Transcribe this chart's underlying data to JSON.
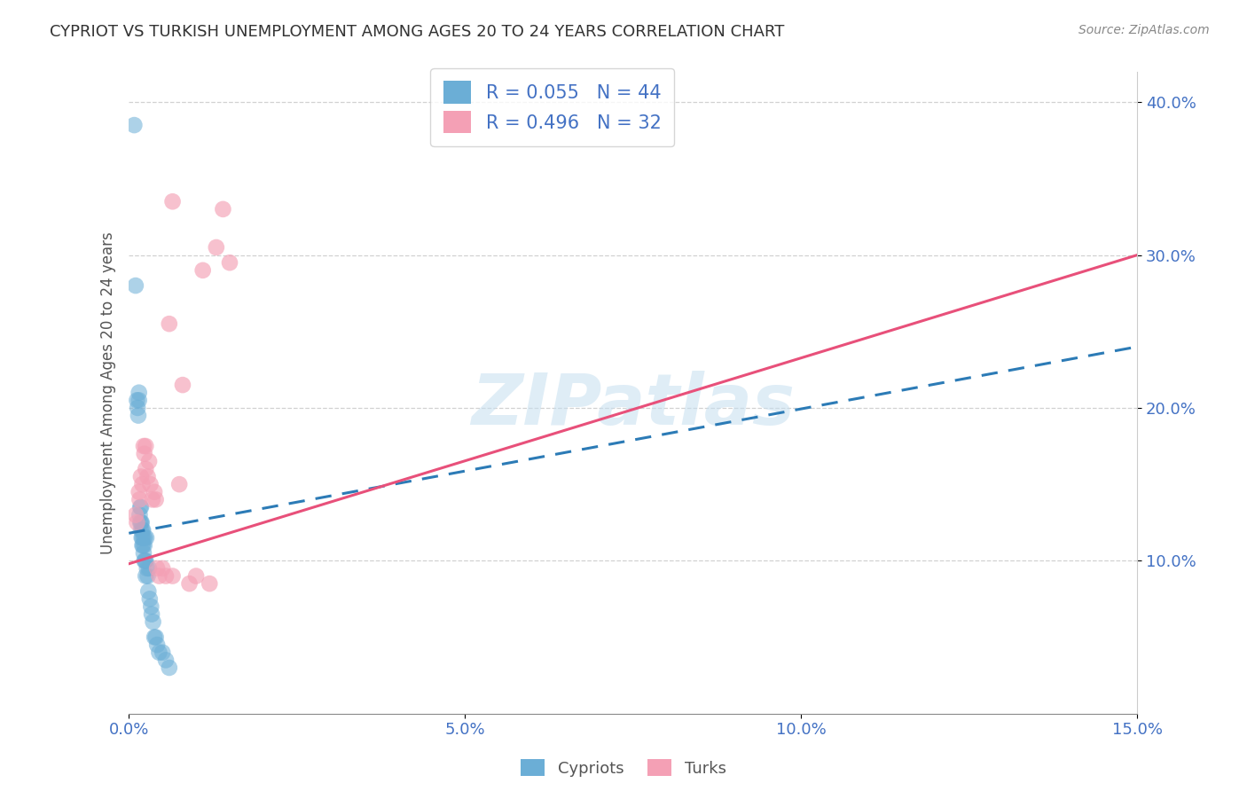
{
  "title": "CYPRIOT VS TURKISH UNEMPLOYMENT AMONG AGES 20 TO 24 YEARS CORRELATION CHART",
  "source": "Source: ZipAtlas.com",
  "ylabel": "Unemployment Among Ages 20 to 24 years",
  "xlim": [
    0.0,
    0.15
  ],
  "ylim": [
    0.0,
    0.42
  ],
  "xticks": [
    0.0,
    0.05,
    0.1,
    0.15
  ],
  "xticklabels": [
    "0.0%",
    "5.0%",
    "10.0%",
    "15.0%"
  ],
  "yticks": [
    0.1,
    0.2,
    0.3,
    0.4
  ],
  "yticklabels": [
    "10.0%",
    "20.0%",
    "30.0%",
    "40.0%"
  ],
  "R_cypriot": 0.055,
  "N_cypriot": 44,
  "R_turk": 0.496,
  "N_turk": 32,
  "cypriot_color": "#6baed6",
  "turk_color": "#f4a0b5",
  "cypriot_line_color": "#2c7bb6",
  "turk_line_color": "#e8507a",
  "watermark_color": "#c5dff0",
  "background_color": "#ffffff",
  "grid_color": "#cccccc",
  "cypriot_x": [
    0.0008,
    0.001,
    0.0012,
    0.0013,
    0.0014,
    0.0015,
    0.0015,
    0.0016,
    0.0017,
    0.0017,
    0.0018,
    0.0018,
    0.0018,
    0.0019,
    0.0019,
    0.002,
    0.002,
    0.002,
    0.0021,
    0.0021,
    0.0022,
    0.0022,
    0.0023,
    0.0023,
    0.0024,
    0.0024,
    0.0025,
    0.0025,
    0.0026,
    0.0027,
    0.0028,
    0.0029,
    0.003,
    0.0031,
    0.0033,
    0.0034,
    0.0036,
    0.0038,
    0.004,
    0.0042,
    0.0045,
    0.005,
    0.0055,
    0.006
  ],
  "cypriot_y": [
    0.385,
    0.28,
    0.205,
    0.2,
    0.195,
    0.21,
    0.205,
    0.13,
    0.135,
    0.125,
    0.135,
    0.125,
    0.12,
    0.125,
    0.115,
    0.12,
    0.115,
    0.11,
    0.12,
    0.11,
    0.115,
    0.105,
    0.11,
    0.1,
    0.115,
    0.1,
    0.1,
    0.09,
    0.115,
    0.095,
    0.09,
    0.08,
    0.095,
    0.075,
    0.07,
    0.065,
    0.06,
    0.05,
    0.05,
    0.045,
    0.04,
    0.04,
    0.035,
    0.03
  ],
  "turk_x": [
    0.001,
    0.0012,
    0.0015,
    0.0016,
    0.0018,
    0.002,
    0.0022,
    0.0023,
    0.0025,
    0.0025,
    0.0028,
    0.003,
    0.0032,
    0.0035,
    0.0038,
    0.004,
    0.0042,
    0.0045,
    0.005,
    0.0055,
    0.006,
    0.0065,
    0.0075,
    0.008,
    0.009,
    0.01,
    0.011,
    0.012,
    0.013,
    0.014,
    0.015,
    0.0065
  ],
  "turk_y": [
    0.13,
    0.125,
    0.145,
    0.14,
    0.155,
    0.15,
    0.175,
    0.17,
    0.175,
    0.16,
    0.155,
    0.165,
    0.15,
    0.14,
    0.145,
    0.14,
    0.095,
    0.09,
    0.095,
    0.09,
    0.255,
    0.09,
    0.15,
    0.215,
    0.085,
    0.09,
    0.29,
    0.085,
    0.305,
    0.33,
    0.295,
    0.335
  ],
  "cypriot_trendline_x": [
    0.0,
    0.15
  ],
  "cypriot_trendline_y": [
    0.118,
    0.24
  ],
  "turk_trendline_x": [
    0.0,
    0.15
  ],
  "turk_trendline_y": [
    0.098,
    0.3
  ]
}
